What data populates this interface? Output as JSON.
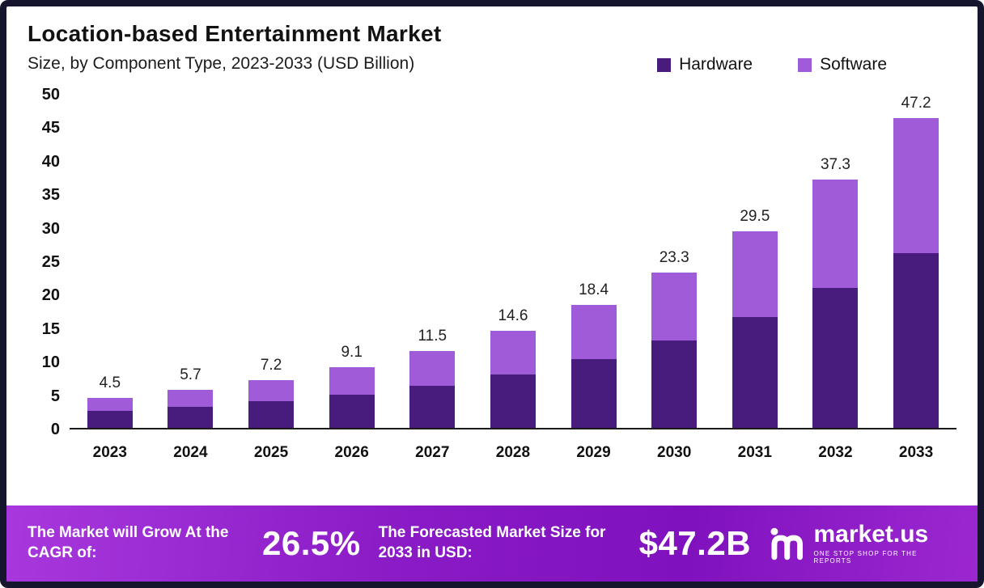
{
  "title": "Location-based Entertainment Market",
  "subtitle": "Size, by Component Type, 2023-2033 (USD Billion)",
  "legend": [
    {
      "label": "Hardware",
      "color": "#471c7c"
    },
    {
      "label": "Software",
      "color": "#a05cd8"
    }
  ],
  "chart_data": {
    "type": "bar",
    "stacked": true,
    "title": "Location-based Entertainment Market",
    "subtitle": "Size, by Component Type, 2023-2033 (USD Billion)",
    "unit": "USD Billion",
    "categories": [
      "2023",
      "2024",
      "2025",
      "2026",
      "2027",
      "2028",
      "2029",
      "2030",
      "2031",
      "2032",
      "2033"
    ],
    "series": [
      {
        "name": "Hardware",
        "color": "#471c7c",
        "values": [
          2.5,
          3.1,
          4.0,
          5.0,
          6.3,
          8.0,
          10.3,
          13.1,
          16.6,
          21.0,
          26.6
        ]
      },
      {
        "name": "Software",
        "color": "#a05cd8",
        "values": [
          2.0,
          2.6,
          3.2,
          4.1,
          5.2,
          6.6,
          8.1,
          10.2,
          12.9,
          16.3,
          20.6
        ]
      }
    ],
    "totals": [
      "4.5",
      "5.7",
      "7.2",
      "9.1",
      "11.5",
      "14.6",
      "18.4",
      "23.3",
      "29.5",
      "37.3",
      "47.2"
    ],
    "ylim": [
      0,
      50
    ],
    "yticks": [
      0,
      5,
      10,
      15,
      20,
      25,
      30,
      35,
      40,
      45,
      50
    ],
    "grid": false,
    "legend_position": "top-right"
  },
  "footer": {
    "cagr_label": "The Market will Grow At the CAGR of:",
    "cagr_value": "26.5%",
    "forecast_label": "The Forecasted Market Size for 2033 in USD:",
    "forecast_value": "$47.2B",
    "brand": "market.us",
    "brand_tagline": "ONE STOP SHOP FOR THE REPORTS"
  }
}
